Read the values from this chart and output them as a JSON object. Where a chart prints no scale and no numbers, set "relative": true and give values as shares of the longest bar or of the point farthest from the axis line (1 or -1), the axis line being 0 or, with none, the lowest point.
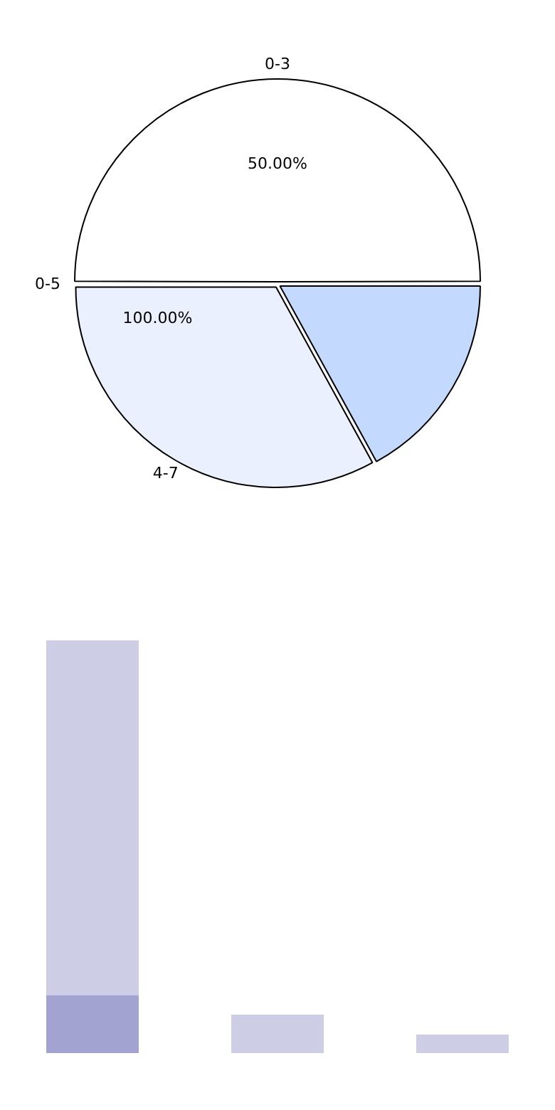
{
  "chart_data": [
    {
      "type": "pie",
      "categories": [
        "0-3",
        null,
        "4-7"
      ],
      "values": [
        50,
        17,
        33
      ],
      "colors": [
        "#ffffff",
        "#c4d9fe",
        "#eaf0fe"
      ],
      "value_labels": [
        "50.00%",
        null,
        null
      ],
      "annotations": [
        "0-5",
        "100.00%"
      ]
    },
    {
      "type": "bar",
      "relative": true,
      "stacked": true,
      "categories": [
        null,
        null,
        null
      ],
      "series": [
        {
          "color": "#a3a3d1",
          "values": [
            0.14,
            null,
            null
          ]
        },
        {
          "color": "#cdcde5",
          "values": [
            0.86,
            0.093,
            0.045
          ]
        }
      ]
    }
  ]
}
